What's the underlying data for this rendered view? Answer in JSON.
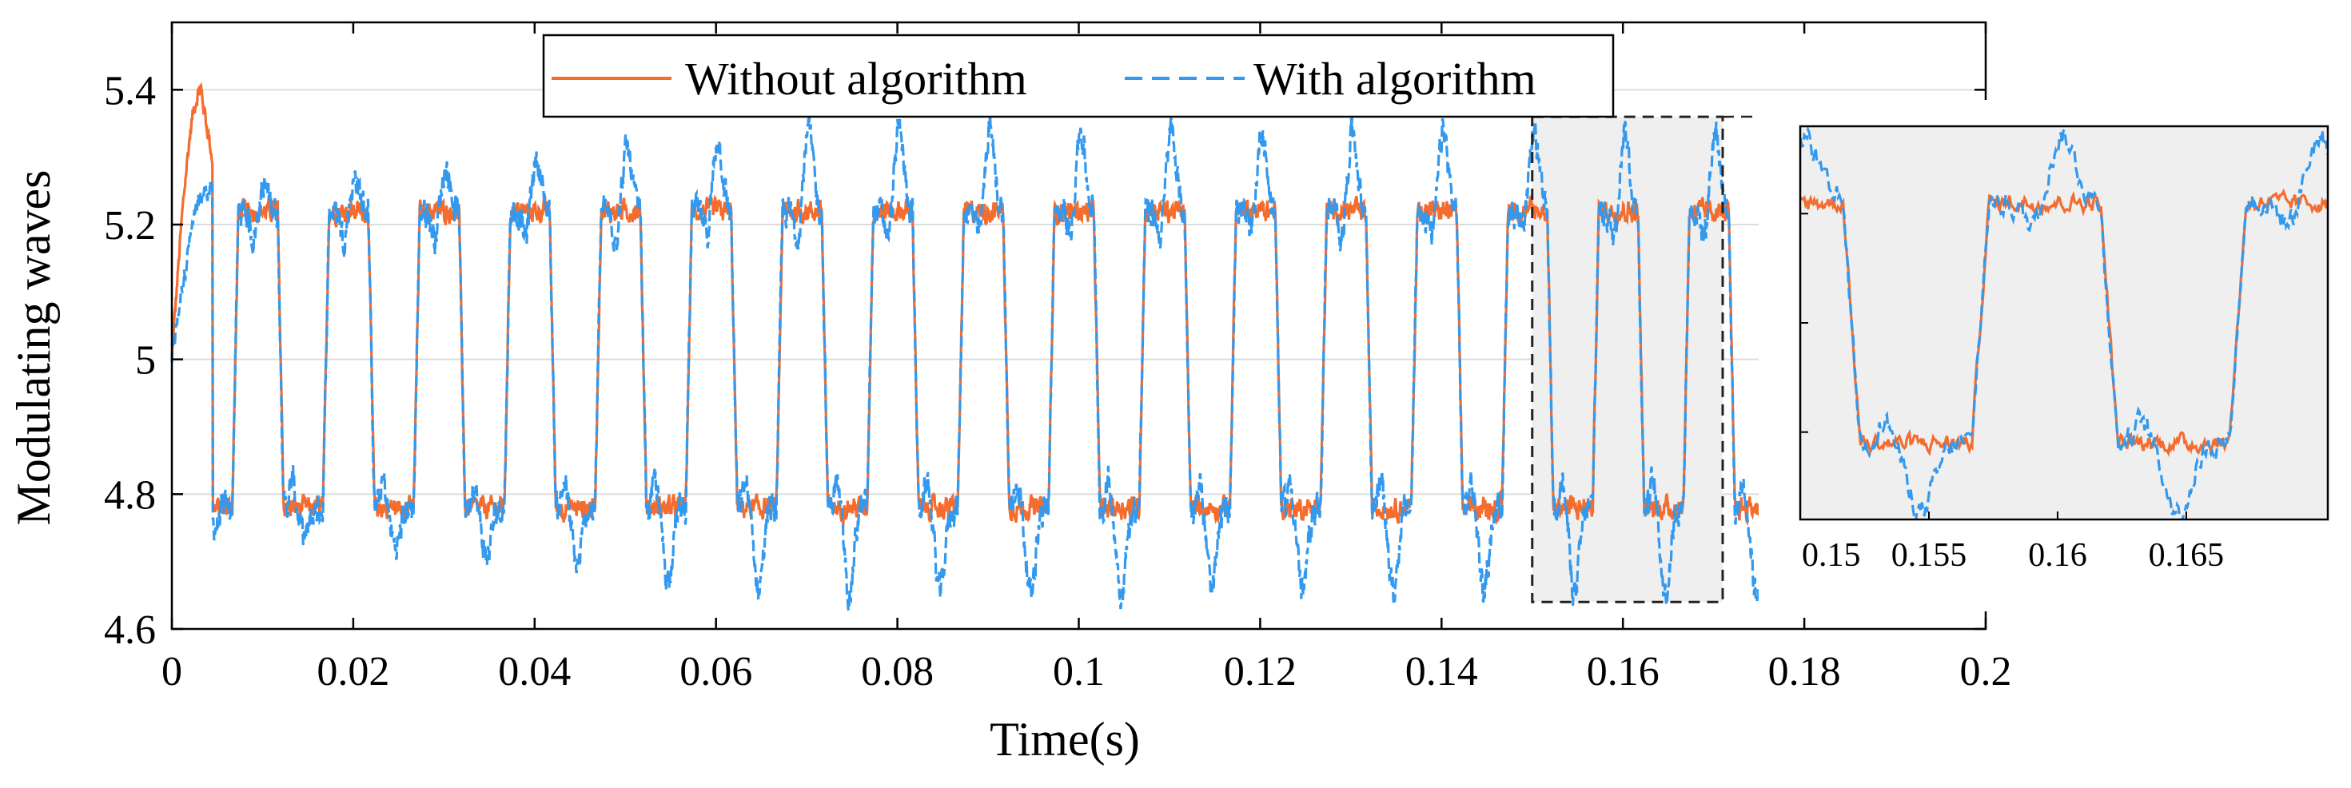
{
  "chart_data": {
    "type": "line",
    "title": "",
    "xlabel": "Time(s)",
    "ylabel": "Modulating waves",
    "xlim": [
      0,
      0.2
    ],
    "ylim": [
      4.6,
      5.5
    ],
    "xticks": [
      0,
      0.02,
      0.04,
      0.06,
      0.08,
      0.1,
      0.12,
      0.14,
      0.16,
      0.18,
      0.2
    ],
    "xtick_labels": [
      "0",
      "0.02",
      "0.04",
      "0.06",
      "0.08",
      "0.1",
      "0.12",
      "0.14",
      "0.16",
      "0.18",
      "0.2"
    ],
    "yticks": [
      4.6,
      4.8,
      5,
      5.2,
      5.4
    ],
    "ytick_labels": [
      "4.6",
      "4.8",
      "5",
      "5.2",
      "5.4"
    ],
    "grid": "horizontal",
    "legend_position": "top-center",
    "signal": {
      "period_s": 0.01,
      "high_level": 5.22,
      "low_level": 4.78,
      "initial_spike": 5.4,
      "end_time": 0.175
    },
    "series": [
      {
        "name": "Without algorithm",
        "color": "#F46C2E",
        "style": "solid",
        "high": 5.22,
        "low": 4.78
      },
      {
        "name": "With algorithm",
        "color": "#3399EE",
        "style": "dashed",
        "peak_max": 5.34,
        "trough_min": 4.65
      }
    ],
    "zoom_region": {
      "x": [
        0.15,
        0.171
      ],
      "y": [
        4.64,
        5.36
      ]
    },
    "inset": {
      "xlim": [
        0.15,
        0.1705
      ],
      "xticks": [
        0.15,
        0.155,
        0.16,
        0.165
      ],
      "xtick_labels": [
        "0.15",
        "0.155",
        "0.16",
        "0.165"
      ]
    }
  }
}
